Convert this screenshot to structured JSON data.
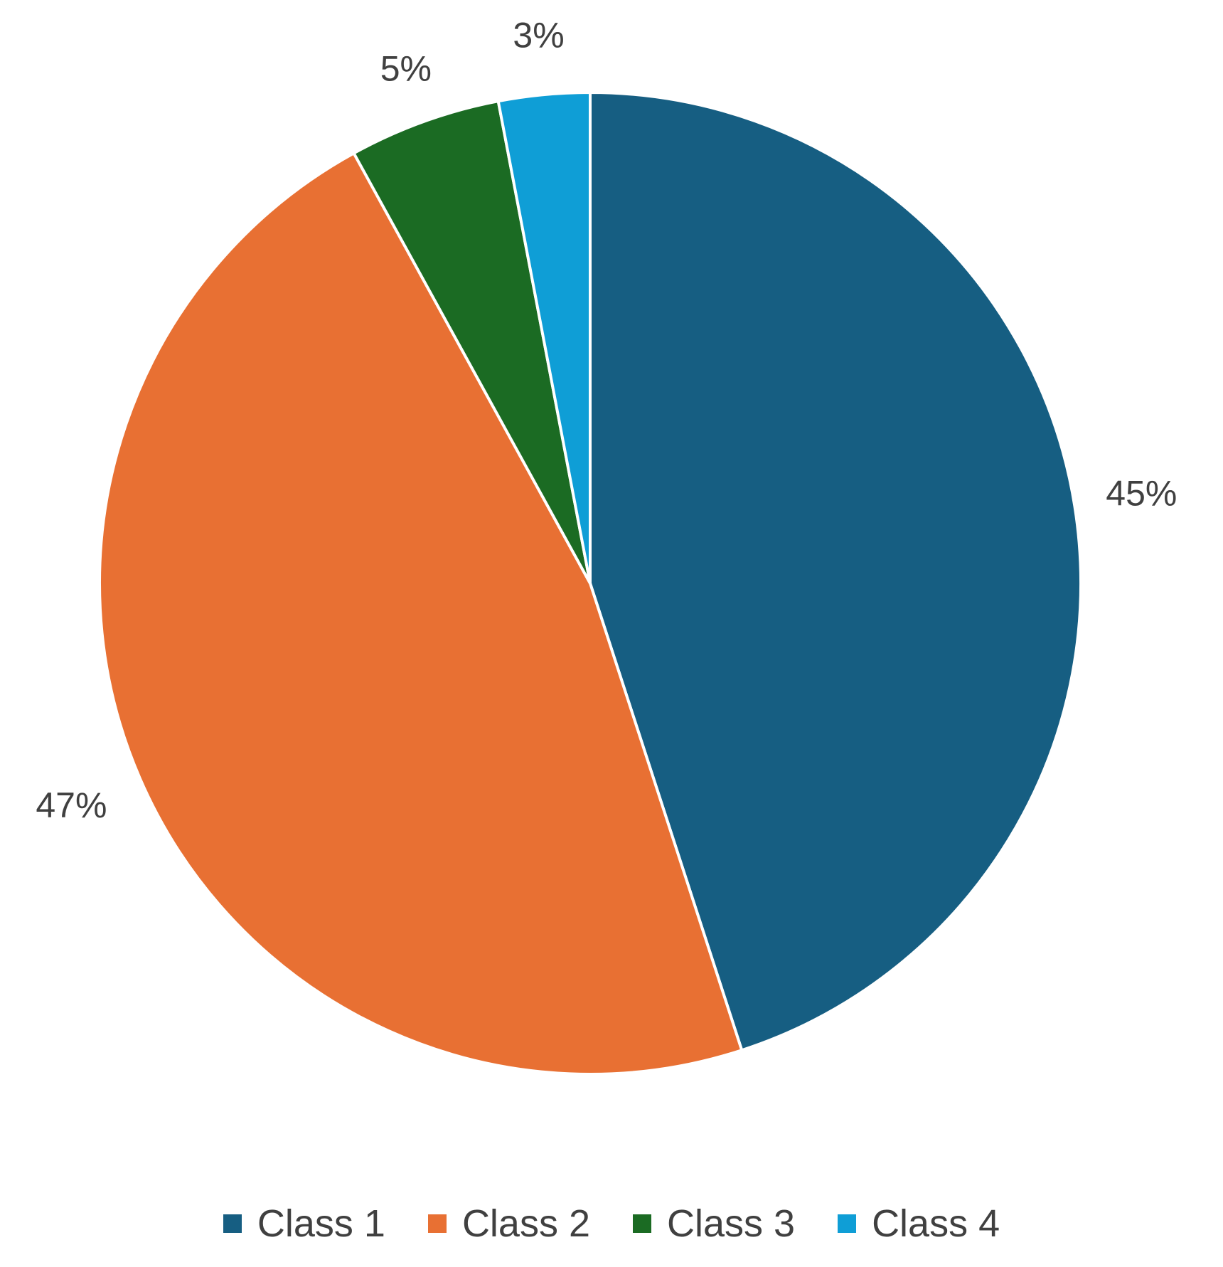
{
  "chart_data": {
    "type": "pie",
    "start_angle_deg": 0,
    "direction": "clockwise",
    "slices": [
      {
        "name": "Class 1",
        "value": 45,
        "label": "45%",
        "color": "#165E82"
      },
      {
        "name": "Class 2",
        "value": 47,
        "label": "47%",
        "color": "#E87033"
      },
      {
        "name": "Class 3",
        "value": 5,
        "label": "5%",
        "color": "#1B6B23"
      },
      {
        "name": "Class 4",
        "value": 3,
        "label": "3%",
        "color": "#0F9ED6"
      }
    ],
    "legend": {
      "placement": "bottom",
      "entries": [
        "Class 1",
        "Class 2",
        "Class 3",
        "Class 4"
      ]
    }
  }
}
